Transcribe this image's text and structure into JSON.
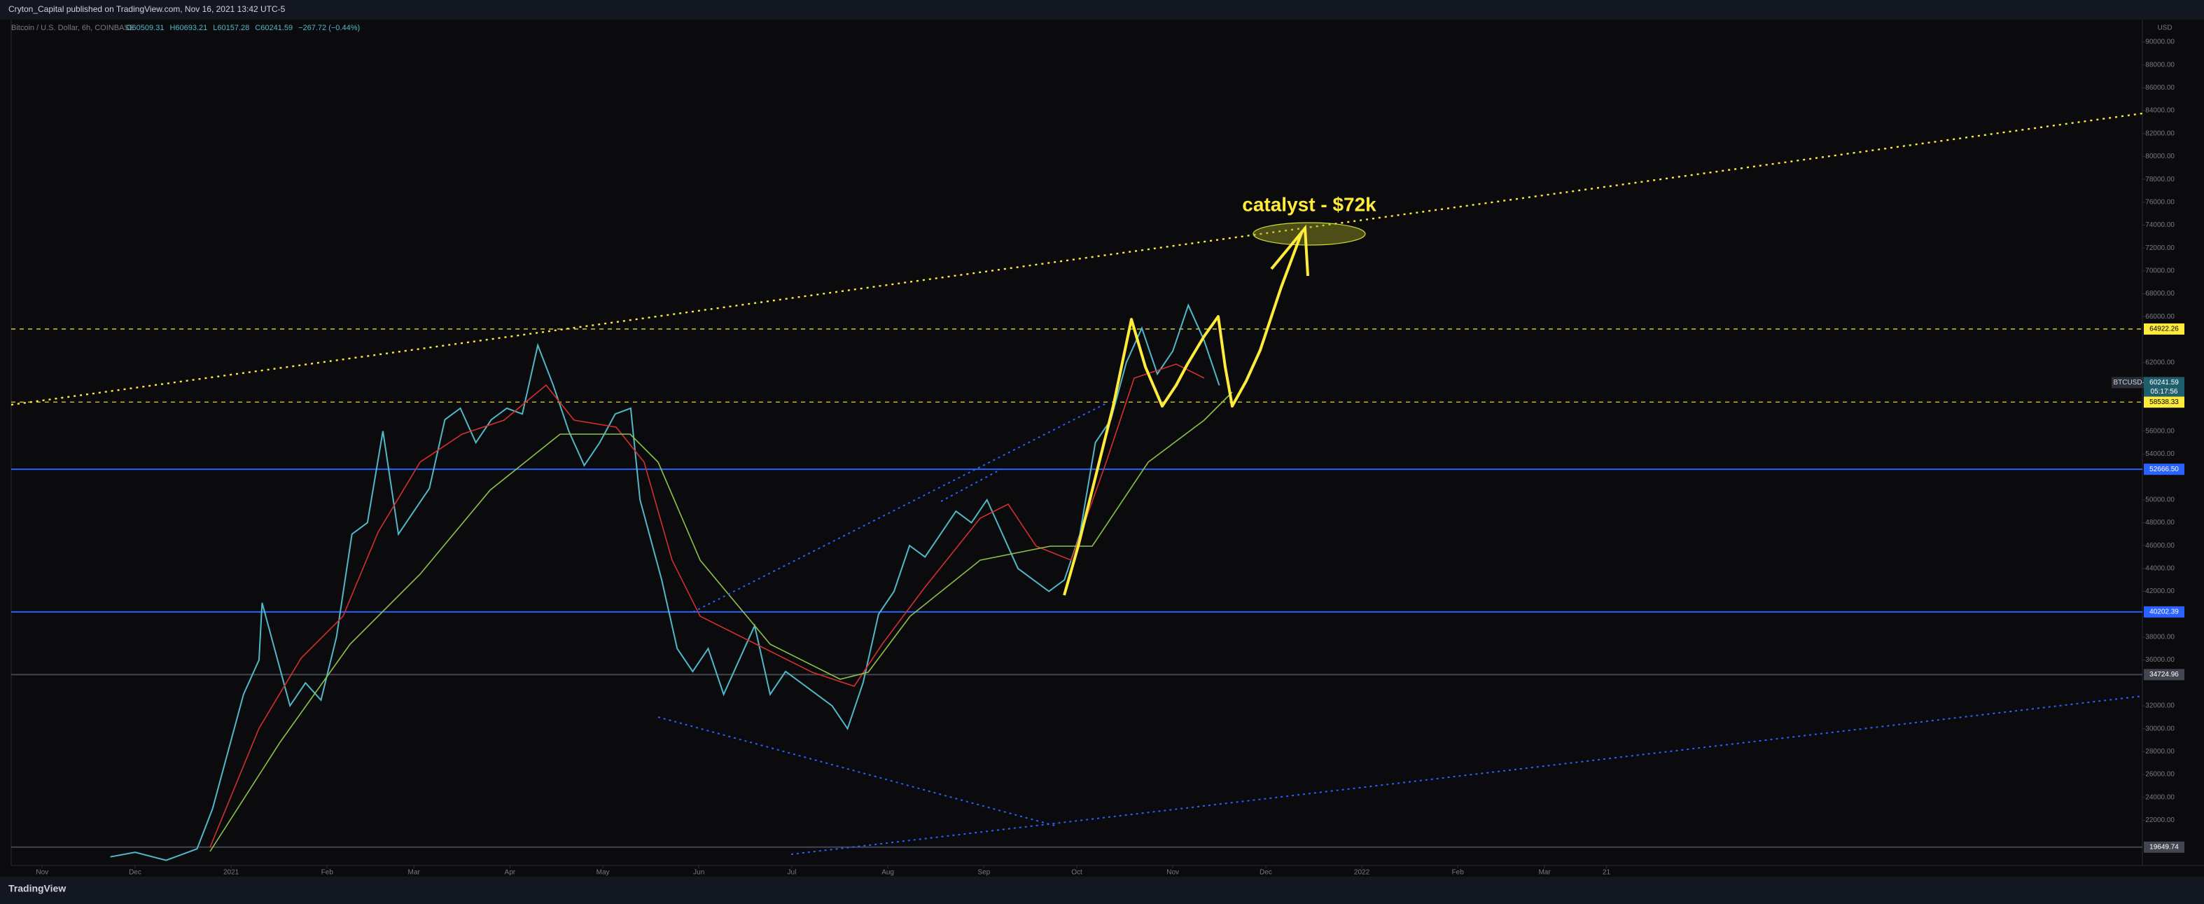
{
  "header": "Cryton_Capital published on TradingView.com, Nov 16, 2021 13:42 UTC-5",
  "footer": "TradingView",
  "chart_data": {
    "type": "line",
    "symbol": "Bitcoin / U.S. Dollar, 6h, COINBASE",
    "ohlc": [
      "O60509.31",
      "H60693.21",
      "L60157.28",
      "C60241.59",
      "−267.72 (−0.44%)"
    ],
    "currency": "USD",
    "annotation": "catalyst - $72k",
    "ticker": "BTCUSD",
    "last_price": {
      "value": 60241.59,
      "label": "60241.59"
    },
    "countdown": "05:17:56",
    "color": "#4fb8c9",
    "x": [
      22,
      30,
      40,
      50,
      55,
      61,
      65,
      70,
      71,
      75,
      80,
      85,
      90,
      95,
      100,
      105,
      110,
      115,
      120,
      125,
      130,
      135,
      140,
      145,
      150,
      155,
      160,
      165,
      170,
      175,
      180,
      185,
      190,
      193,
      200,
      205,
      210,
      215,
      220,
      225,
      230,
      235,
      240,
      245,
      250,
      255,
      260,
      265,
      270,
      275,
      280,
      285,
      290,
      295,
      300,
      305,
      310,
      315,
      320,
      325,
      330,
      335,
      340,
      345,
      350,
      355,
      360,
      365,
      370,
      375,
      380
    ],
    "values": [
      18800,
      19200,
      18500,
      19500,
      23000,
      29000,
      33000,
      36000,
      41000,
      37000,
      32000,
      34000,
      32500,
      38000,
      47000,
      48000,
      56000,
      47000,
      49000,
      51000,
      57000,
      58000,
      55000,
      57000,
      58000,
      57500,
      63500,
      60000,
      56000,
      53000,
      55000,
      57500,
      58000,
      50000,
      43000,
      37000,
      35000,
      37000,
      33000,
      36000,
      39000,
      33000,
      35000,
      34000,
      33000,
      32000,
      30000,
      34000,
      40000,
      42000,
      46000,
      45000,
      47000,
      49000,
      48000,
      50000,
      47000,
      44000,
      43000,
      42000,
      43000,
      47000,
      55000,
      57000,
      62000,
      65000,
      61000,
      63000,
      67000,
      64000,
      60000
    ],
    "xlim": [
      -10,
      678
    ],
    "xticks": [
      {
        "value": 0,
        "label": "Nov"
      },
      {
        "value": 30,
        "label": "Dec"
      },
      {
        "value": 61,
        "label": "2021"
      },
      {
        "value": 92,
        "label": "Feb"
      },
      {
        "value": 120,
        "label": "Mar"
      },
      {
        "value": 151,
        "label": "Apr"
      },
      {
        "value": 181,
        "label": "May"
      },
      {
        "value": 212,
        "label": "Jun"
      },
      {
        "value": 242,
        "label": "Jul"
      },
      {
        "value": 273,
        "label": "Aug"
      },
      {
        "value": 304,
        "label": "Sep"
      },
      {
        "value": 334,
        "label": "Oct"
      },
      {
        "value": 365,
        "label": "Nov"
      },
      {
        "value": 395,
        "label": "Dec"
      },
      {
        "value": 426,
        "label": "2022"
      },
      {
        "value": 457,
        "label": "Feb"
      },
      {
        "value": 485,
        "label": "Mar"
      },
      {
        "value": 505,
        "label": "21"
      }
    ],
    "ylim": [
      19270,
      91958
    ],
    "yticks": [
      {
        "value": 22000,
        "label": "22000.00"
      },
      {
        "value": 24000,
        "label": "24000.00"
      },
      {
        "value": 26000,
        "label": "26000.00"
      },
      {
        "value": 28000,
        "label": "28000.00"
      },
      {
        "value": 30000,
        "label": "30000.00"
      },
      {
        "value": 32000,
        "label": "32000.00"
      },
      {
        "value": 36000,
        "label": "36000.00"
      },
      {
        "value": 38000,
        "label": "38000.00"
      },
      {
        "value": 42000,
        "label": "42000.00"
      },
      {
        "value": 44000,
        "label": "44000.00"
      },
      {
        "value": 46000,
        "label": "46000.00"
      },
      {
        "value": 48000,
        "label": "48000.00"
      },
      {
        "value": 50000,
        "label": "50000.00"
      },
      {
        "value": 54000,
        "label": "54000.00"
      },
      {
        "value": 56000,
        "label": "56000.00"
      },
      {
        "value": 62000,
        "label": "62000.00"
      },
      {
        "value": 66000,
        "label": "66000.00"
      },
      {
        "value": 68000,
        "label": "68000.00"
      },
      {
        "value": 70000,
        "label": "70000.00"
      },
      {
        "value": 72000,
        "label": "72000.00"
      },
      {
        "value": 74000,
        "label": "74000.00"
      },
      {
        "value": 76000,
        "label": "76000.00"
      },
      {
        "value": 78000,
        "label": "78000.00"
      },
      {
        "value": 80000,
        "label": "80000.00"
      },
      {
        "value": 82000,
        "label": "82000.00"
      },
      {
        "value": 84000,
        "label": "84000.00"
      },
      {
        "value": 86000,
        "label": "86000.00"
      },
      {
        "value": 88000,
        "label": "88000.00"
      },
      {
        "value": 90000,
        "label": "90000.00"
      }
    ],
    "levels": [
      {
        "value": 64922.26,
        "label": "64922.26",
        "color": "#ffeb3b",
        "style": "dashed"
      },
      {
        "value": 58538.33,
        "label": "58538.33",
        "color": "#ffeb3b",
        "style": "dashed"
      },
      {
        "value": 52666.5,
        "label": "52666.50",
        "color": "#2962ff",
        "style": "solid"
      },
      {
        "value": 40202.39,
        "label": "40202.39",
        "color": "#2962ff",
        "style": "solid"
      },
      {
        "value": 34724.96,
        "label": "34724.96",
        "color": "#434651",
        "style": "solid"
      },
      {
        "value": 19649.74,
        "label": "19649.74",
        "color": "#434651",
        "style": "solid"
      }
    ]
  }
}
